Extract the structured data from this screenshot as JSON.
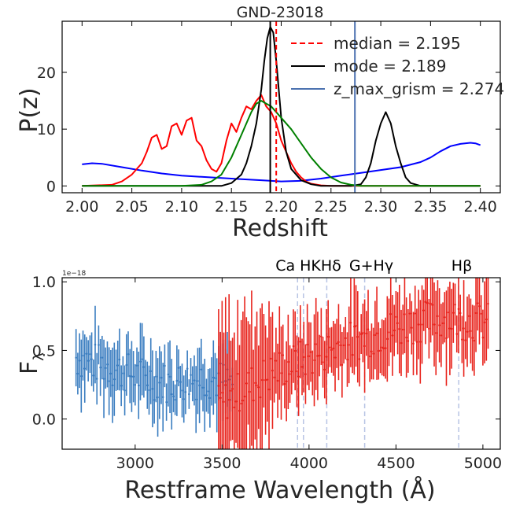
{
  "chart_data": [
    {
      "type": "line",
      "title": "GND-23018",
      "xlabel": "Redshift",
      "ylabel": "P(z)",
      "xlim": [
        1.98,
        2.42
      ],
      "ylim": [
        -1.2,
        29
      ],
      "xticks": [
        "2.00",
        "2.05",
        "2.10",
        "2.15",
        "2.20",
        "2.25",
        "2.30",
        "2.35",
        "2.40"
      ],
      "yticks": [
        "0",
        "10",
        "20"
      ],
      "legend_position": "top-right",
      "vlines": [
        {
          "name": "median = 2.195",
          "x": 2.195,
          "color": "#ff0000",
          "style": "dashed"
        },
        {
          "name": "mode = 2.189",
          "x": 2.189,
          "color": "#000000",
          "style": "solid"
        },
        {
          "name": "z_max_grism = 2.274",
          "x": 2.274,
          "color": "#4c72b0",
          "style": "solid"
        }
      ],
      "series": [
        {
          "color": "#0000ff",
          "x": [
            2.0,
            2.01,
            2.02,
            2.04,
            2.06,
            2.08,
            2.1,
            2.12,
            2.14,
            2.16,
            2.18,
            2.2,
            2.22,
            2.24,
            2.26,
            2.28,
            2.3,
            2.32,
            2.34,
            2.35,
            2.36,
            2.37,
            2.38,
            2.39,
            2.395,
            2.4
          ],
          "y": [
            3.8,
            4.0,
            3.9,
            3.3,
            2.7,
            2.2,
            1.8,
            1.6,
            1.4,
            1.2,
            1.0,
            0.8,
            0.9,
            1.3,
            1.8,
            2.3,
            2.8,
            3.3,
            4.2,
            5.0,
            6.1,
            7.0,
            7.4,
            7.6,
            7.5,
            7.2
          ]
        },
        {
          "color": "#ff0000",
          "x": [
            2.0,
            2.03,
            2.04,
            2.05,
            2.06,
            2.065,
            2.07,
            2.075,
            2.08,
            2.085,
            2.09,
            2.095,
            2.1,
            2.105,
            2.11,
            2.115,
            2.12,
            2.125,
            2.13,
            2.135,
            2.14,
            2.145,
            2.15,
            2.155,
            2.16,
            2.165,
            2.17,
            2.175,
            2.18,
            2.185,
            2.19,
            2.195,
            2.2,
            2.205,
            2.21,
            2.215,
            2.22,
            2.225,
            2.23,
            2.24,
            2.25,
            2.3,
            2.4
          ],
          "y": [
            0,
            0.2,
            0.8,
            2.0,
            4.0,
            6.0,
            8.5,
            9.0,
            6.5,
            7.0,
            10.5,
            11.0,
            9.0,
            11.5,
            12.0,
            8.0,
            7.0,
            4.5,
            3.0,
            2.5,
            4.0,
            8.0,
            11.0,
            9.5,
            12.0,
            14.0,
            13.5,
            15.0,
            16.0,
            14.0,
            13.0,
            11.0,
            8.0,
            6.0,
            4.0,
            2.5,
            1.5,
            0.8,
            0.4,
            0.1,
            0,
            0,
            0
          ]
        },
        {
          "color": "#000000",
          "x": [
            2.0,
            2.14,
            2.15,
            2.16,
            2.165,
            2.17,
            2.175,
            2.18,
            2.183,
            2.186,
            2.189,
            2.192,
            2.195,
            2.2,
            2.205,
            2.21,
            2.22,
            2.23,
            2.24,
            2.25,
            2.27,
            2.28,
            2.285,
            2.29,
            2.295,
            2.3,
            2.305,
            2.31,
            2.315,
            2.32,
            2.325,
            2.33,
            2.34,
            2.35,
            2.4
          ],
          "y": [
            0,
            0,
            0.5,
            2.0,
            4.0,
            7.0,
            11.0,
            17.0,
            22.0,
            26.0,
            28.0,
            27.0,
            22.0,
            12.0,
            6.0,
            3.0,
            1.0,
            0.3,
            0,
            0,
            0,
            0.3,
            1.5,
            4.0,
            8.0,
            11.0,
            13.0,
            11.0,
            7.0,
            4.0,
            1.5,
            0.5,
            0,
            0,
            0
          ]
        },
        {
          "color": "#008000",
          "x": [
            2.0,
            2.1,
            2.12,
            2.13,
            2.14,
            2.15,
            2.16,
            2.17,
            2.175,
            2.18,
            2.185,
            2.19,
            2.2,
            2.21,
            2.22,
            2.23,
            2.24,
            2.25,
            2.26,
            2.27,
            2.28,
            2.4
          ],
          "y": [
            0,
            0,
            0.2,
            0.8,
            2.0,
            5.0,
            9.0,
            13.0,
            14.5,
            15.0,
            14.5,
            14.0,
            12.0,
            10.0,
            7.5,
            5.0,
            3.0,
            1.5,
            0.6,
            0.2,
            0,
            0
          ]
        }
      ]
    },
    {
      "type": "scatter",
      "xlabel": "Restframe Wavelength (Å)",
      "ylabel": "F_λ",
      "offset_text": "1e−18",
      "xlim": [
        2580,
        5100
      ],
      "ylim": [
        -0.22,
        1.03
      ],
      "xticks": [
        "3000",
        "3500",
        "4000",
        "4500",
        "5000"
      ],
      "yticks": [
        "0.0",
        "0.5",
        "1.0"
      ],
      "line_markers": [
        {
          "label": "Ca H",
          "x": 3968
        },
        {
          "label": "K",
          "x": 3934
        },
        {
          "label": "Hδ",
          "x": 4102
        },
        {
          "label": "G+Hγ",
          "x": 4320
        },
        {
          "label": "Hβ",
          "x": 4861
        }
      ],
      "line_labels": [
        "Ca HKHδ",
        "G+Hγ",
        "Hβ"
      ],
      "series": [
        {
          "color": "#3a7dc0",
          "note": "blue grism spectrum with error bars",
          "x_start": 2660,
          "x_end": 3560,
          "step": 10,
          "y_trend": [
            [
              2660,
              0.45
            ],
            [
              2800,
              0.4
            ],
            [
              3000,
              0.32
            ],
            [
              3200,
              0.26
            ],
            [
              3400,
              0.3
            ],
            [
              3560,
              0.27
            ]
          ],
          "err": 0.18
        },
        {
          "color": "#e8231c",
          "note": "red grism spectrum with error bars",
          "x_start": 3480,
          "x_end": 5030,
          "step": 10,
          "y_trend": [
            [
              3480,
              0.1
            ],
            [
              3600,
              0.2
            ],
            [
              3800,
              0.35
            ],
            [
              4000,
              0.45
            ],
            [
              4200,
              0.55
            ],
            [
              4400,
              0.62
            ],
            [
              4600,
              0.7
            ],
            [
              4800,
              0.74
            ],
            [
              4900,
              0.72
            ],
            [
              5030,
              0.7
            ]
          ],
          "err": 0.22
        }
      ]
    }
  ]
}
